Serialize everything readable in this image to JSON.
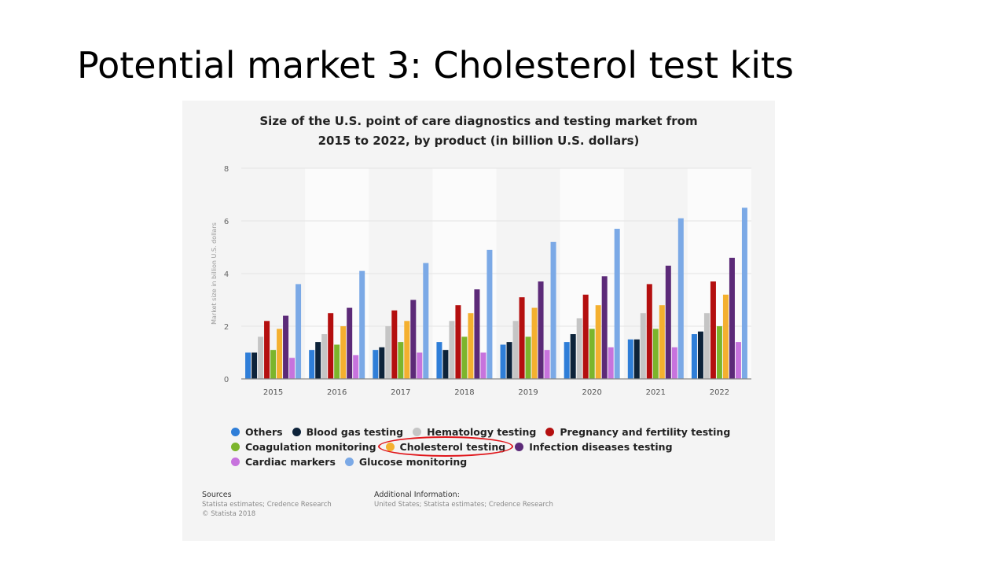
{
  "slide": {
    "title": "Potential market 3: Cholesterol test kits"
  },
  "chart_data": {
    "type": "bar",
    "title_lines": [
      "Size of the U.S. point of care diagnostics and testing market from",
      "2015 to 2022, by product (in billion U.S. dollars)"
    ],
    "xlabel": "",
    "ylabel": "Market size in billion U.S. dollars",
    "ylim": [
      0,
      8
    ],
    "yticks": [
      0,
      2,
      4,
      6,
      8
    ],
    "grid": true,
    "legend_position": "bottom",
    "highlighted_series": "Cholesterol testing",
    "categories": [
      "2015",
      "2016",
      "2017",
      "2018",
      "2019",
      "2020",
      "2021",
      "2022"
    ],
    "series": [
      {
        "name": "Others",
        "color": "#2f7ed8",
        "values": [
          1.0,
          1.1,
          1.1,
          1.4,
          1.3,
          1.4,
          1.5,
          1.7
        ]
      },
      {
        "name": "Blood gas testing",
        "color": "#0d233a",
        "values": [
          1.0,
          1.4,
          1.2,
          1.1,
          1.4,
          1.7,
          1.5,
          1.8
        ]
      },
      {
        "name": "Hematology testing",
        "color": "#c5c5c5",
        "values": [
          1.6,
          1.7,
          2.0,
          2.2,
          2.2,
          2.3,
          2.5,
          2.5
        ]
      },
      {
        "name": "Pregnancy and fertility testing",
        "color": "#b40f0f",
        "values": [
          2.2,
          2.5,
          2.6,
          2.8,
          3.1,
          3.2,
          3.6,
          3.7
        ]
      },
      {
        "name": "Coagulation monitoring",
        "color": "#7cb52c",
        "values": [
          1.1,
          1.3,
          1.4,
          1.6,
          1.6,
          1.9,
          1.9,
          2.0
        ]
      },
      {
        "name": "Cholesterol testing",
        "color": "#f4b02f",
        "values": [
          1.9,
          2.0,
          2.2,
          2.5,
          2.7,
          2.8,
          2.8,
          3.2
        ]
      },
      {
        "name": "Infection diseases testing",
        "color": "#5c2a78",
        "values": [
          2.4,
          2.7,
          3.0,
          3.4,
          3.7,
          3.9,
          4.3,
          4.6
        ]
      },
      {
        "name": "Cardiac markers",
        "color": "#c773dd",
        "values": [
          0.8,
          0.9,
          1.0,
          1.0,
          1.1,
          1.2,
          1.2,
          1.4
        ]
      },
      {
        "name": "Glucose monitoring",
        "color": "#7ba9e6",
        "values": [
          3.6,
          4.1,
          4.4,
          4.9,
          5.2,
          5.7,
          6.1,
          6.5
        ]
      }
    ],
    "legend_rows": [
      [
        0,
        1,
        2,
        3
      ],
      [
        4,
        5,
        6
      ],
      [
        7,
        8
      ]
    ]
  },
  "footer": {
    "sources_header": "Sources",
    "sources_line1": "Statista estimates; Credence Research",
    "sources_line2": "© Statista 2018",
    "info_header": "Additional Information:",
    "info_line1": "United States; Statista estimates; Credence Research"
  }
}
